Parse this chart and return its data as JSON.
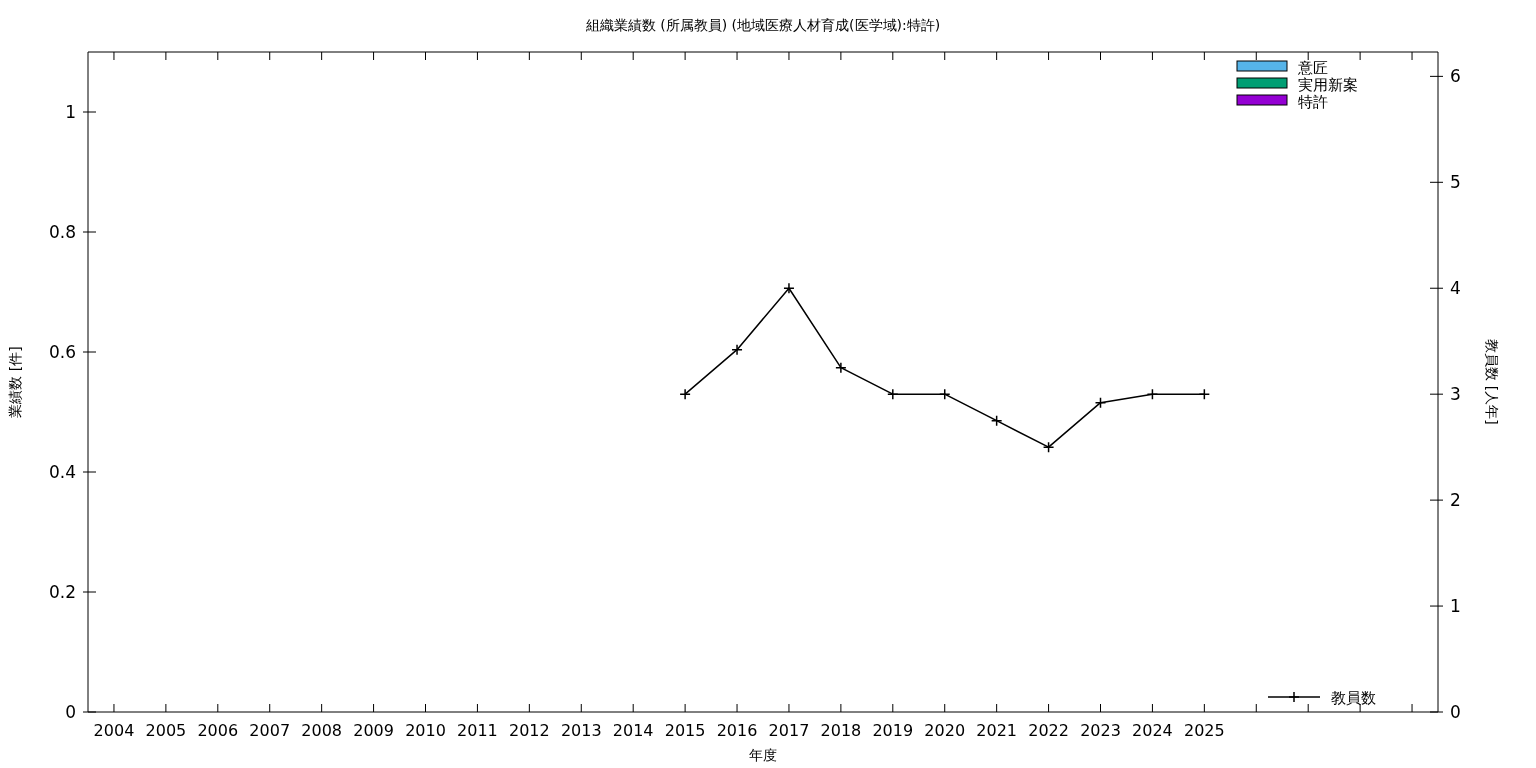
{
  "chart_data": {
    "type": "bar",
    "title": "組織業績数 (所属教員) (地域医療人材育成(医学域):特許)",
    "xlabel": "年度",
    "ylabel": "業績数 [件]",
    "y2label": "教員数 [人年]",
    "categories": [
      "2004",
      "2005",
      "2006",
      "2007",
      "2008",
      "2009",
      "2010",
      "2011",
      "2012",
      "2013",
      "2014",
      "2015",
      "2016",
      "2017",
      "2018",
      "2019",
      "2020",
      "2021",
      "2022",
      "2023",
      "2024",
      "2025",
      null,
      null,
      null,
      null
    ],
    "ylim": [
      0,
      1.1
    ],
    "yticks": [
      0,
      0.2,
      0.4,
      0.6,
      0.8,
      1
    ],
    "y2lim": [
      0,
      6.23
    ],
    "y2ticks": [
      0,
      1,
      2,
      3,
      4,
      5,
      6
    ],
    "grid": false,
    "legend": "right",
    "series": [
      {
        "name": "意匠",
        "color": "#56b4e9",
        "values": [
          0,
          0,
          0,
          0,
          0,
          0,
          0,
          0,
          0,
          0,
          0,
          0,
          0,
          0,
          0,
          0,
          0,
          0,
          0,
          0,
          0,
          0,
          null,
          null,
          null,
          null
        ]
      },
      {
        "name": "実用新案",
        "color": "#009e73",
        "values": [
          0,
          0,
          0,
          0,
          0,
          0,
          0,
          0,
          0,
          0,
          0,
          0,
          0,
          0,
          0,
          0,
          0,
          0,
          0,
          0,
          0,
          0,
          null,
          null,
          null,
          null
        ]
      },
      {
        "name": "特許",
        "color": "#9400d3",
        "values": [
          0,
          0,
          0,
          0,
          0,
          0,
          0,
          0,
          0,
          0,
          0,
          0,
          0,
          0,
          0,
          0,
          0,
          0,
          0,
          0,
          0,
          0,
          null,
          null,
          null,
          null
        ]
      },
      {
        "name": "教員数",
        "type": "line",
        "axis": "y2",
        "color": "#000000",
        "marker": "cross",
        "line_style": "solid",
        "values": [
          null,
          null,
          null,
          null,
          null,
          null,
          null,
          null,
          null,
          null,
          null,
          3,
          3.42,
          4,
          3.25,
          3,
          3,
          2.75,
          2.5,
          2.92,
          3,
          3,
          null,
          null,
          null,
          null
        ]
      }
    ]
  }
}
